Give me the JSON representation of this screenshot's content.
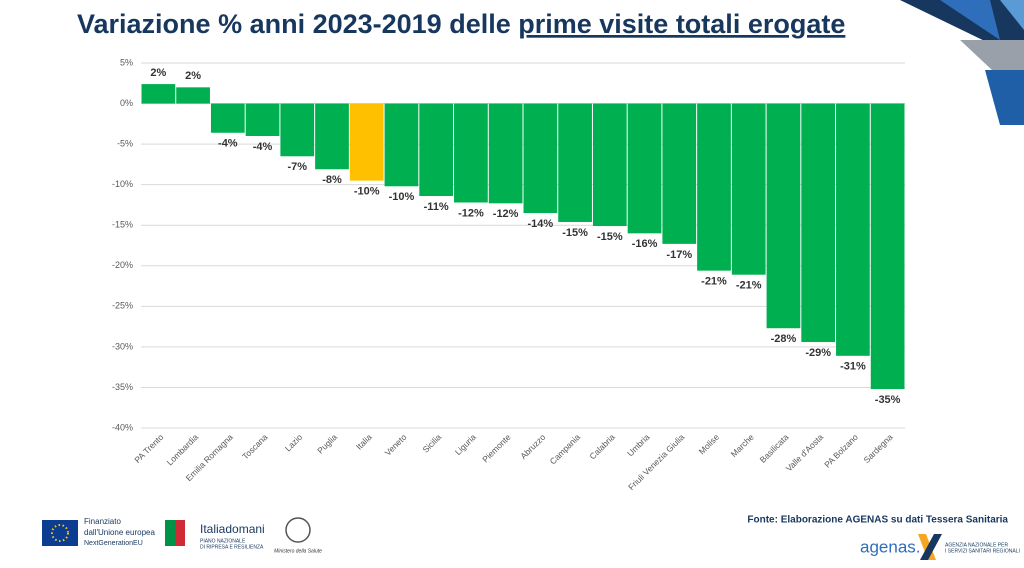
{
  "chart_data": {
    "type": "bar",
    "title": "Variazione % anni 2023-2019 delle",
    "title_underlined": "prime visite totali erogate",
    "categories": [
      "PA Trento",
      "Lombardia",
      "Emilia Romagna",
      "Toscana",
      "Lazio",
      "Puglia",
      "Italia",
      "Veneto",
      "Sicilia",
      "Liguria",
      "Piemonte",
      "Abruzzo",
      "Campania",
      "Calabria",
      "Umbria",
      "Friuli Venezia Giulia",
      "Molise",
      "Marche",
      "Basilicata",
      "Valle d'Aosta",
      "PA Bolzano",
      "Sardegna"
    ],
    "values": [
      2.4,
      2.0,
      -3.6,
      -4.0,
      -6.5,
      -8.1,
      -9.5,
      -10.2,
      -11.4,
      -12.2,
      -12.3,
      -13.5,
      -14.6,
      -15.1,
      -16.0,
      -17.3,
      -20.6,
      -21.1,
      -27.7,
      -29.4,
      -31.1,
      -35.2
    ],
    "value_labels": [
      "2%",
      "2%",
      "-4%",
      "-4%",
      "-7%",
      "-8%",
      "-10%",
      "-10%",
      "-11%",
      "-12%",
      "-12%",
      "-14%",
      "-15%",
      "-15%",
      "-16%",
      "-17%",
      "-21%",
      "-21%",
      "-28%",
      "-29%",
      "-31%",
      "-35%"
    ],
    "colors": [
      "#00b050",
      "#00b050",
      "#00b050",
      "#00b050",
      "#00b050",
      "#00b050",
      "#ffc000",
      "#00b050",
      "#00b050",
      "#00b050",
      "#00b050",
      "#00b050",
      "#00b050",
      "#00b050",
      "#00b050",
      "#00b050",
      "#00b050",
      "#00b050",
      "#00b050",
      "#00b050",
      "#00b050",
      "#00b050"
    ],
    "ylim": [
      -40,
      5
    ],
    "yticks": [
      {
        "value": 5,
        "label": "5%"
      },
      {
        "value": 0,
        "label": "0%"
      },
      {
        "value": -5,
        "label": "-5%"
      },
      {
        "value": -10,
        "label": "-10%"
      },
      {
        "value": -15,
        "label": "-15%"
      },
      {
        "value": -20,
        "label": "-20%"
      },
      {
        "value": -25,
        "label": "-25%"
      },
      {
        "value": -30,
        "label": "-30%"
      },
      {
        "value": -35,
        "label": "-35%"
      },
      {
        "value": -40,
        "label": "-40%"
      }
    ],
    "grid": true
  },
  "footer": {
    "source": "Fonte: Elaborazione AGENAS su dati Tessera Sanitaria",
    "eu_line1": "Finanziato",
    "eu_line2": "dall'Unione europea",
    "eu_line3": "NextGenerationEU",
    "italia_domani": "Italiadomani",
    "pnrr_line1": "PIANO NAZIONALE",
    "pnrr_line2": "DI RIPRESA E RESILIENZA",
    "ministero": "Ministero della Salute",
    "agenas": "agenas.",
    "agenas_line1": "AGENZIA NAZIONALE PER",
    "agenas_line2": "I SERVIZI SANITARI REGIONALI"
  }
}
